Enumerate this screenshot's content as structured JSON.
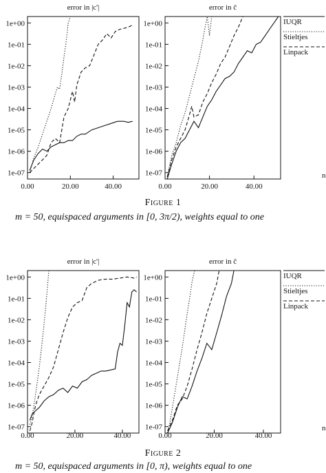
{
  "figures": [
    {
      "caption_title": "Figure 1",
      "caption_text": "m = 50, equispaced arguments in [0, 3π/2), weights equal to one"
    },
    {
      "caption_title": "Figure 2",
      "caption_text": "m = 50, equispaced arguments in [0, π), weights equal to one"
    }
  ],
  "colors": {
    "line": "#111111",
    "background": "#ffffff"
  },
  "chart_data": [
    {
      "type": "line",
      "title": "error in |c'|",
      "xlabel": "",
      "ylabel": "",
      "log_y": true,
      "xlim": [
        0,
        52
      ],
      "ylim_log10": [
        -7.3,
        0.3
      ],
      "x_ticks": [
        "0.00",
        "20.00",
        "40.00"
      ],
      "y_ticks": [
        "1e+00",
        "1e-01",
        "1e-02",
        "1e-03",
        "1e-04",
        "1e-05",
        "1e-06",
        "1e-07"
      ],
      "series": [
        {
          "name": "IUQR",
          "style": "solid",
          "points": [
            [
              1,
              -6.9
            ],
            [
              3,
              -6.4
            ],
            [
              5,
              -6.1
            ],
            [
              7,
              -5.9
            ],
            [
              9,
              -6.0
            ],
            [
              11,
              -5.8
            ],
            [
              13,
              -5.7
            ],
            [
              15,
              -5.6
            ],
            [
              17,
              -5.6
            ],
            [
              19,
              -5.5
            ],
            [
              21,
              -5.5
            ],
            [
              23,
              -5.3
            ],
            [
              25,
              -5.2
            ],
            [
              27,
              -5.2
            ],
            [
              30,
              -5.0
            ],
            [
              33,
              -4.9
            ],
            [
              36,
              -4.8
            ],
            [
              39,
              -4.7
            ],
            [
              42,
              -4.6
            ],
            [
              45,
              -4.6
            ],
            [
              47,
              -4.65
            ],
            [
              49,
              -4.6
            ]
          ]
        },
        {
          "name": "Stieltjes",
          "style": "dotted",
          "points": [
            [
              1,
              -7.0
            ],
            [
              3,
              -6.3
            ],
            [
              5,
              -5.8
            ],
            [
              7,
              -5.2
            ],
            [
              9,
              -4.6
            ],
            [
              11,
              -4.0
            ],
            [
              13,
              -3.3
            ],
            [
              14,
              -3.0
            ],
            [
              15,
              -3.1
            ],
            [
              16,
              -2.4
            ],
            [
              17,
              -1.6
            ],
            [
              18,
              -0.9
            ],
            [
              19,
              0.0
            ],
            [
              20,
              0.5
            ]
          ]
        },
        {
          "name": "Linpack",
          "style": "dashed",
          "points": [
            [
              1,
              -7.0
            ],
            [
              3,
              -6.8
            ],
            [
              5,
              -6.6
            ],
            [
              7,
              -6.4
            ],
            [
              9,
              -6.2
            ],
            [
              11,
              -5.6
            ],
            [
              13,
              -5.4
            ],
            [
              15,
              -5.6
            ],
            [
              17,
              -4.4
            ],
            [
              19,
              -4.0
            ],
            [
              21,
              -3.2
            ],
            [
              22,
              -3.7
            ],
            [
              23,
              -2.9
            ],
            [
              25,
              -2.3
            ],
            [
              27,
              -2.1
            ],
            [
              29,
              -2.0
            ],
            [
              31,
              -1.5
            ],
            [
              33,
              -1.0
            ],
            [
              35,
              -0.8
            ],
            [
              37,
              -0.5
            ],
            [
              39,
              -0.7
            ],
            [
              41,
              -0.4
            ],
            [
              43,
              -0.3
            ],
            [
              45,
              -0.25
            ],
            [
              47,
              -0.2
            ],
            [
              49,
              -0.1
            ]
          ]
        }
      ]
    },
    {
      "type": "line",
      "title": "error in ĉ",
      "xlabel": "n",
      "ylabel": "",
      "log_y": true,
      "xlim": [
        0,
        52
      ],
      "ylim_log10": [
        -7.3,
        0.3
      ],
      "x_ticks": [
        "0.00",
        "20.00",
        "40.00"
      ],
      "y_ticks": [
        "1e+00",
        "1e-01",
        "1e-02",
        "1e-03",
        "1e-04",
        "1e-05",
        "1e-06",
        "1e-07"
      ],
      "legend": [
        "IUQR",
        "Stieltjes",
        "Linpack"
      ],
      "series": [
        {
          "name": "IUQR",
          "style": "solid",
          "points": [
            [
              1,
              -7.4
            ],
            [
              3,
              -6.6
            ],
            [
              5,
              -6.0
            ],
            [
              7,
              -5.6
            ],
            [
              9,
              -5.4
            ],
            [
              11,
              -5.0
            ],
            [
              13,
              -4.6
            ],
            [
              15,
              -4.9
            ],
            [
              17,
              -4.4
            ],
            [
              19,
              -3.9
            ],
            [
              21,
              -3.6
            ],
            [
              23,
              -3.2
            ],
            [
              25,
              -2.9
            ],
            [
              27,
              -2.6
            ],
            [
              29,
              -2.5
            ],
            [
              31,
              -2.3
            ],
            [
              33,
              -1.9
            ],
            [
              35,
              -1.6
            ],
            [
              37,
              -1.3
            ],
            [
              39,
              -1.4
            ],
            [
              41,
              -1.0
            ],
            [
              43,
              -0.9
            ],
            [
              45,
              -0.6
            ],
            [
              47,
              -0.3
            ],
            [
              49,
              0.0
            ],
            [
              51,
              0.3
            ]
          ]
        },
        {
          "name": "Stieltjes",
          "style": "dotted",
          "points": [
            [
              1,
              -7.2
            ],
            [
              3,
              -6.2
            ],
            [
              5,
              -5.6
            ],
            [
              7,
              -4.8
            ],
            [
              9,
              -4.2
            ],
            [
              11,
              -3.4
            ],
            [
              13,
              -2.6
            ],
            [
              15,
              -1.8
            ],
            [
              17,
              -0.8
            ],
            [
              18,
              -0.2
            ],
            [
              19,
              0.3
            ],
            [
              20,
              -0.6
            ],
            [
              21,
              0.3
            ]
          ]
        },
        {
          "name": "Linpack",
          "style": "dashed",
          "points": [
            [
              1,
              -7.2
            ],
            [
              3,
              -6.4
            ],
            [
              5,
              -5.8
            ],
            [
              7,
              -5.4
            ],
            [
              9,
              -5.0
            ],
            [
              11,
              -4.3
            ],
            [
              12,
              -3.9
            ],
            [
              13,
              -4.4
            ],
            [
              15,
              -4.3
            ],
            [
              17,
              -3.7
            ],
            [
              19,
              -3.3
            ],
            [
              21,
              -2.8
            ],
            [
              23,
              -2.4
            ],
            [
              25,
              -1.9
            ],
            [
              27,
              -1.6
            ],
            [
              29,
              -1.1
            ],
            [
              31,
              -0.6
            ],
            [
              33,
              -0.2
            ],
            [
              35,
              0.3
            ]
          ]
        }
      ]
    },
    {
      "type": "line",
      "title": "error in |c'|",
      "xlabel": "",
      "ylabel": "",
      "log_y": true,
      "xlim": [
        0,
        47
      ],
      "ylim_log10": [
        -7.3,
        0.3
      ],
      "x_ticks": [
        "0.00",
        "20.00",
        "40.00"
      ],
      "y_ticks": [
        "1e+00",
        "1e-01",
        "1e-02",
        "1e-03",
        "1e-04",
        "1e-05",
        "1e-06",
        "1e-07"
      ],
      "series": [
        {
          "name": "IUQR",
          "style": "solid",
          "points": [
            [
              1,
              -6.7
            ],
            [
              2,
              -6.4
            ],
            [
              3,
              -6.3
            ],
            [
              5,
              -6.1
            ],
            [
              7,
              -5.8
            ],
            [
              9,
              -5.6
            ],
            [
              11,
              -5.5
            ],
            [
              13,
              -5.3
            ],
            [
              15,
              -5.2
            ],
            [
              17,
              -5.4
            ],
            [
              19,
              -5.1
            ],
            [
              21,
              -5.2
            ],
            [
              23,
              -4.9
            ],
            [
              25,
              -4.8
            ],
            [
              27,
              -4.6
            ],
            [
              29,
              -4.5
            ],
            [
              31,
              -4.4
            ],
            [
              33,
              -4.4
            ],
            [
              35,
              -4.35
            ],
            [
              37,
              -4.3
            ],
            [
              38,
              -3.5
            ],
            [
              39,
              -3.1
            ],
            [
              40,
              -3.2
            ],
            [
              41,
              -2.3
            ],
            [
              42,
              -1.2
            ],
            [
              43,
              -1.4
            ],
            [
              44,
              -0.7
            ],
            [
              45,
              -0.6
            ],
            [
              46,
              -0.7
            ]
          ]
        },
        {
          "name": "Stieltjes",
          "style": "dotted",
          "points": [
            [
              1,
              -6.9
            ],
            [
              2,
              -6.5
            ],
            [
              3,
              -5.8
            ],
            [
              4,
              -5.0
            ],
            [
              5,
              -4.2
            ],
            [
              6,
              -3.2
            ],
            [
              7,
              -2.2
            ],
            [
              8,
              -1.0
            ],
            [
              9,
              0.3
            ]
          ]
        },
        {
          "name": "Linpack",
          "style": "dashed",
          "points": [
            [
              1,
              -7.2
            ],
            [
              2,
              -6.8
            ],
            [
              3,
              -6.2
            ],
            [
              4,
              -5.8
            ],
            [
              5,
              -5.5
            ],
            [
              7,
              -5.1
            ],
            [
              9,
              -4.7
            ],
            [
              11,
              -4.2
            ],
            [
              13,
              -3.4
            ],
            [
              15,
              -2.6
            ],
            [
              17,
              -1.9
            ],
            [
              19,
              -1.4
            ],
            [
              21,
              -1.2
            ],
            [
              23,
              -1.1
            ],
            [
              25,
              -0.5
            ],
            [
              27,
              -0.3
            ],
            [
              30,
              -0.15
            ],
            [
              33,
              -0.1
            ],
            [
              36,
              -0.1
            ],
            [
              39,
              -0.05
            ],
            [
              42,
              0.0
            ],
            [
              45,
              -0.05
            ],
            [
              46,
              0.0
            ]
          ]
        }
      ]
    },
    {
      "type": "line",
      "title": "error in ĉ",
      "xlabel": "n",
      "ylabel": "",
      "log_y": true,
      "xlim": [
        0,
        47
      ],
      "ylim_log10": [
        -7.3,
        0.3
      ],
      "x_ticks": [
        "0.00",
        "20.00",
        "40.00"
      ],
      "y_ticks": [
        "1e+00",
        "1e-01",
        "1e-02",
        "1e-03",
        "1e-04",
        "1e-05",
        "1e-06",
        "1e-07"
      ],
      "legend": [
        "IUQR",
        "Stieltjes",
        "Linpack"
      ],
      "series": [
        {
          "name": "IUQR",
          "style": "solid",
          "points": [
            [
              1,
              -7.4
            ],
            [
              3,
              -6.8
            ],
            [
              5,
              -6.1
            ],
            [
              7,
              -5.6
            ],
            [
              9,
              -5.7
            ],
            [
              11,
              -5.1
            ],
            [
              13,
              -4.4
            ],
            [
              15,
              -3.8
            ],
            [
              17,
              -3.1
            ],
            [
              19,
              -3.4
            ],
            [
              21,
              -2.6
            ],
            [
              23,
              -1.8
            ],
            [
              25,
              -0.9
            ],
            [
              27,
              -0.3
            ],
            [
              28,
              0.3
            ]
          ]
        },
        {
          "name": "Stieltjes",
          "style": "dotted",
          "points": [
            [
              1,
              -7.3
            ],
            [
              2,
              -6.8
            ],
            [
              3,
              -6.1
            ],
            [
              4,
              -5.4
            ],
            [
              5,
              -4.7
            ],
            [
              6,
              -4.0
            ],
            [
              7,
              -3.3
            ],
            [
              8,
              -2.5
            ],
            [
              9,
              -1.7
            ],
            [
              10,
              -1.0
            ],
            [
              11,
              -0.2
            ],
            [
              12,
              0.3
            ]
          ]
        },
        {
          "name": "Linpack",
          "style": "dashed",
          "points": [
            [
              1,
              -7.2
            ],
            [
              3,
              -6.7
            ],
            [
              5,
              -6.0
            ],
            [
              7,
              -5.7
            ],
            [
              9,
              -5.1
            ],
            [
              11,
              -4.3
            ],
            [
              13,
              -3.4
            ],
            [
              15,
              -2.6
            ],
            [
              17,
              -1.7
            ],
            [
              19,
              -1.0
            ],
            [
              21,
              -0.3
            ],
            [
              22,
              0.3
            ]
          ]
        }
      ]
    }
  ]
}
